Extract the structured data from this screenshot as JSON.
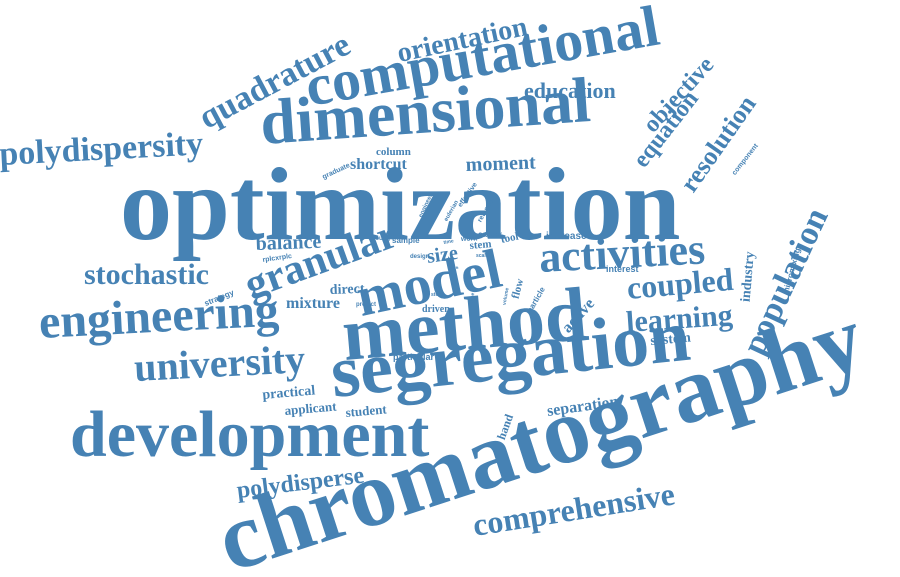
{
  "word_color": "#4682b4",
  "background_color": "#ffffff",
  "words": [
    {
      "id": "optimization",
      "text": "optimization"
    },
    {
      "id": "chromatography",
      "text": "chromatography"
    },
    {
      "id": "segregation",
      "text": "segregation"
    },
    {
      "id": "method",
      "text": "method"
    },
    {
      "id": "development",
      "text": "development"
    },
    {
      "id": "dimensional",
      "text": "dimensional"
    },
    {
      "id": "computational",
      "text": "computational"
    },
    {
      "id": "engineering",
      "text": "engineering"
    },
    {
      "id": "model",
      "text": "model"
    },
    {
      "id": "granular",
      "text": "granular"
    },
    {
      "id": "university",
      "text": "university"
    },
    {
      "id": "activities",
      "text": "activities"
    },
    {
      "id": "population",
      "text": "population"
    },
    {
      "id": "quadrature",
      "text": "quadrature"
    },
    {
      "id": "polydispersity",
      "text": "polydispersity"
    },
    {
      "id": "comprehensive",
      "text": "comprehensive"
    },
    {
      "id": "stochastic",
      "text": "stochastic"
    },
    {
      "id": "coupled",
      "text": "coupled"
    },
    {
      "id": "learning",
      "text": "learning"
    },
    {
      "id": "orientation",
      "text": "orientation"
    },
    {
      "id": "polydisperse",
      "text": "polydisperse"
    },
    {
      "id": "resolution",
      "text": "resolution"
    },
    {
      "id": "equation",
      "text": "equation"
    },
    {
      "id": "objective",
      "text": "objective"
    },
    {
      "id": "education",
      "text": "education"
    },
    {
      "id": "moment",
      "text": "moment"
    },
    {
      "id": "balance",
      "text": "balance"
    },
    {
      "id": "shortcut",
      "text": "shortcut"
    },
    {
      "id": "separation",
      "text": "separation"
    },
    {
      "id": "mixture",
      "text": "mixture"
    },
    {
      "id": "size",
      "text": "size"
    },
    {
      "id": "active",
      "text": "active"
    },
    {
      "id": "industry",
      "text": "industry"
    },
    {
      "id": "practical",
      "text": "practical"
    },
    {
      "id": "system",
      "text": "system"
    },
    {
      "id": "applicant",
      "text": "applicant"
    },
    {
      "id": "student",
      "text": "student"
    },
    {
      "id": "hand",
      "text": "hand"
    },
    {
      "id": "direct",
      "text": "direct"
    },
    {
      "id": "column",
      "text": "column"
    },
    {
      "id": "micromixing",
      "text": "micromixing"
    },
    {
      "id": "increase",
      "text": "increase"
    },
    {
      "id": "interest",
      "text": "interest"
    },
    {
      "id": "flow",
      "text": "flow"
    },
    {
      "id": "driven",
      "text": "driven"
    },
    {
      "id": "particular",
      "text": "particular"
    },
    {
      "id": "strategy",
      "text": "strategy"
    },
    {
      "id": "stem",
      "text": "stem"
    },
    {
      "id": "tool",
      "text": "tool"
    },
    {
      "id": "particle",
      "text": "particle"
    },
    {
      "id": "graduate",
      "text": "graduate"
    },
    {
      "id": "component",
      "text": "component"
    },
    {
      "id": "career",
      "text": "career"
    },
    {
      "id": "work",
      "text": "work"
    },
    {
      "id": "sample",
      "text": "sample"
    },
    {
      "id": "young",
      "text": "young"
    },
    {
      "id": "rplcxrplc",
      "text": "rplcxrplc"
    },
    {
      "id": "predict",
      "text": "predict"
    },
    {
      "id": "design",
      "text": "design"
    },
    {
      "id": "engineer",
      "text": "engineer"
    },
    {
      "id": "eulerian",
      "text": "eulerian"
    },
    {
      "id": "effective",
      "text": "effective"
    },
    {
      "id": "retention",
      "text": "retention"
    },
    {
      "id": "volume",
      "text": "volume"
    },
    {
      "id": "scale",
      "text": "scale"
    },
    {
      "id": "time",
      "text": "time"
    },
    {
      "id": "step",
      "text": "step"
    },
    {
      "id": "type",
      "text": "type"
    },
    {
      "id": "shift",
      "text": "shift"
    }
  ]
}
